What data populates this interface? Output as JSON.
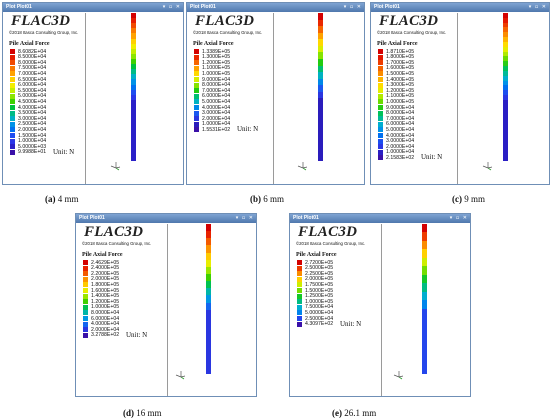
{
  "window_title": "Plot Plot01",
  "window_controls": "▾ ▫ ✕",
  "app_logo": "FLAC3D",
  "copyright": "©2018 Itasca Consulting Group, Inc.",
  "legend_title": "Pile Axial Force",
  "unit_label": "Unit: N",
  "axes_icon": "xyz-axes-icon",
  "panels": [
    {
      "id": "a",
      "caption_letter": "(a)",
      "caption_text": "4 mm",
      "legend": [
        {
          "label": "8.6082E+04",
          "color": "#d40000"
        },
        {
          "label": "8.5000E+04",
          "color": "#e51b00"
        },
        {
          "label": "8.0000E+04",
          "color": "#f14a00"
        },
        {
          "label": "7.5000E+04",
          "color": "#f97a00"
        },
        {
          "label": "7.0000E+04",
          "color": "#ffa200"
        },
        {
          "label": "6.5000E+04",
          "color": "#ffd000"
        },
        {
          "label": "6.0000E+04",
          "color": "#f2ee00"
        },
        {
          "label": "5.5000E+04",
          "color": "#c4ee00"
        },
        {
          "label": "5.0000E+04",
          "color": "#8ae600"
        },
        {
          "label": "4.5000E+04",
          "color": "#3ed100"
        },
        {
          "label": "4.0000E+04",
          "color": "#00c23d"
        },
        {
          "label": "3.5000E+04",
          "color": "#00bb86"
        },
        {
          "label": "3.0000E+04",
          "color": "#00b0c6"
        },
        {
          "label": "2.5000E+04",
          "color": "#0092e6"
        },
        {
          "label": "2.0000E+04",
          "color": "#0070f0"
        },
        {
          "label": "1.5000E+04",
          "color": "#1f4df0"
        },
        {
          "label": "1.0000E+04",
          "color": "#2a36e8"
        },
        {
          "label": "5.0000E+03",
          "color": "#2a20c8"
        },
        {
          "label": "9.9988E+01",
          "color": "#3a10a8"
        }
      ]
    },
    {
      "id": "b",
      "caption_letter": "(b)",
      "caption_text": "6 mm",
      "legend": [
        {
          "label": "1.3389E+05",
          "color": "#d40000"
        },
        {
          "label": "1.3000E+05",
          "color": "#ea2800"
        },
        {
          "label": "1.2000E+05",
          "color": "#f76500"
        },
        {
          "label": "1.1000E+05",
          "color": "#ffa200"
        },
        {
          "label": "1.0000E+05",
          "color": "#ffd800"
        },
        {
          "label": "9.0000E+04",
          "color": "#d8ee00"
        },
        {
          "label": "8.0000E+04",
          "color": "#86e400"
        },
        {
          "label": "7.0000E+04",
          "color": "#22cc10"
        },
        {
          "label": "6.0000E+04",
          "color": "#00bf70"
        },
        {
          "label": "5.0000E+04",
          "color": "#00b2c0"
        },
        {
          "label": "4.0000E+04",
          "color": "#0088e8"
        },
        {
          "label": "3.0000E+04",
          "color": "#1a58f0"
        },
        {
          "label": "2.0000E+04",
          "color": "#2a36e0"
        },
        {
          "label": "1.0000E+04",
          "color": "#2a1cbc"
        },
        {
          "label": "1.5531E+02",
          "color": "#3a10a8"
        }
      ]
    },
    {
      "id": "c",
      "caption_letter": "(c)",
      "caption_text": "9 mm",
      "legend": [
        {
          "label": "1.8710E+05",
          "color": "#d40000"
        },
        {
          "label": "1.8000E+05",
          "color": "#e31600"
        },
        {
          "label": "1.7000E+05",
          "color": "#ee3c00"
        },
        {
          "label": "1.6000E+05",
          "color": "#f66400"
        },
        {
          "label": "1.5000E+05",
          "color": "#fb8c00"
        },
        {
          "label": "1.4000E+05",
          "color": "#ffb400"
        },
        {
          "label": "1.3000E+05",
          "color": "#ffdc00"
        },
        {
          "label": "1.2000E+05",
          "color": "#e6ee00"
        },
        {
          "label": "1.1000E+05",
          "color": "#b0ea00"
        },
        {
          "label": "1.0000E+05",
          "color": "#6cdc00"
        },
        {
          "label": "9.0000E+04",
          "color": "#28cc14"
        },
        {
          "label": "8.0000E+04",
          "color": "#00c25a"
        },
        {
          "label": "7.0000E+04",
          "color": "#00ba98"
        },
        {
          "label": "6.0000E+04",
          "color": "#00aed0"
        },
        {
          "label": "5.0000E+04",
          "color": "#0092e8"
        },
        {
          "label": "4.0000E+04",
          "color": "#0070f0"
        },
        {
          "label": "3.0000E+04",
          "color": "#1c4ef0"
        },
        {
          "label": "2.0000E+04",
          "color": "#2a36e4"
        },
        {
          "label": "1.0000E+04",
          "color": "#2a1ec4"
        },
        {
          "label": "2.1583E+02",
          "color": "#3a10a8"
        }
      ]
    },
    {
      "id": "d",
      "caption_letter": "(d)",
      "caption_text": "16 mm",
      "legend": [
        {
          "label": "2.4629E+05",
          "color": "#d40000"
        },
        {
          "label": "2.4000E+05",
          "color": "#e82200"
        },
        {
          "label": "2.2000E+05",
          "color": "#f45a00"
        },
        {
          "label": "2.0000E+05",
          "color": "#fc9400"
        },
        {
          "label": "1.8000E+05",
          "color": "#ffca00"
        },
        {
          "label": "1.6000E+05",
          "color": "#e8ee00"
        },
        {
          "label": "1.4000E+05",
          "color": "#9ae600"
        },
        {
          "label": "1.2000E+05",
          "color": "#3ed000"
        },
        {
          "label": "1.0000E+05",
          "color": "#00c250"
        },
        {
          "label": "8.0000E+04",
          "color": "#00b6a8"
        },
        {
          "label": "6.0000E+04",
          "color": "#0098e4"
        },
        {
          "label": "4.0000E+04",
          "color": "#1466f0"
        },
        {
          "label": "2.0000E+04",
          "color": "#2a36e0"
        },
        {
          "label": "3.2788E+02",
          "color": "#3a10a8"
        }
      ]
    },
    {
      "id": "e",
      "caption_letter": "(e)",
      "caption_text": "26.1 mm",
      "legend": [
        {
          "label": "2.7200E+05",
          "color": "#d40000"
        },
        {
          "label": "2.5000E+05",
          "color": "#ee3c00"
        },
        {
          "label": "2.2500E+05",
          "color": "#fb8c00"
        },
        {
          "label": "2.0000E+05",
          "color": "#ffd000"
        },
        {
          "label": "1.7500E+05",
          "color": "#cdee00"
        },
        {
          "label": "1.5000E+05",
          "color": "#72de00"
        },
        {
          "label": "1.2500E+05",
          "color": "#14c828"
        },
        {
          "label": "1.0000E+05",
          "color": "#00bc82"
        },
        {
          "label": "7.5000E+04",
          "color": "#00aed0"
        },
        {
          "label": "5.0000E+04",
          "color": "#0084ec"
        },
        {
          "label": "2.5000E+04",
          "color": "#2446ec"
        },
        {
          "label": "4.3097E+02",
          "color": "#3a10a8"
        }
      ]
    }
  ]
}
